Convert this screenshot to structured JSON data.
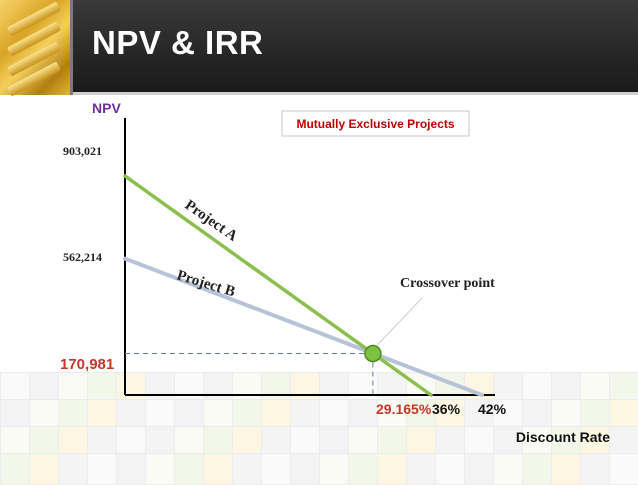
{
  "slide": {
    "title": "NPV & IRR"
  },
  "legend_box": {
    "text": "Mutually Exclusive Projects"
  },
  "colors": {
    "project_a": "#8cbf4e",
    "project_b": "#b7c3d6",
    "accent_red": "#c0392b",
    "npv_label": "#7030a0",
    "header_dark": "#262626",
    "dashed": "#5b7fb0",
    "crossover_dot": "#7cc242",
    "legend_text": "#c00000"
  },
  "chart_data": {
    "type": "line",
    "title": "",
    "ylabel": "NPV",
    "xlabel": "Discount Rate",
    "x_tick_labels": [
      "29.165%",
      "36%",
      "42%"
    ],
    "y_tick_labels": [
      "903,021",
      "562,214",
      "170,981"
    ],
    "xlim": [
      0,
      42
    ],
    "ylim": [
      0,
      903021
    ],
    "series": [
      {
        "name": "Project A",
        "x": [
          0,
          36
        ],
        "y": [
          903021,
          0
        ]
      },
      {
        "name": "Project B",
        "x": [
          0,
          42
        ],
        "y": [
          562214,
          0
        ]
      }
    ],
    "crossover": {
      "label": "Crossover point",
      "x": 29.165,
      "y": 170981,
      "x_label": "29.165%",
      "y_label": "170,981"
    }
  }
}
